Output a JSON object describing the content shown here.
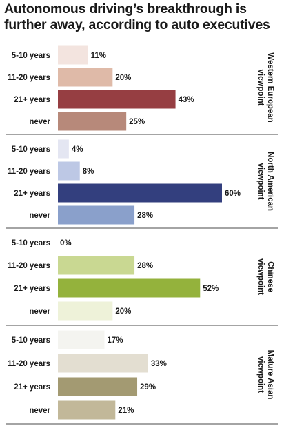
{
  "chart_data": {
    "type": "bar",
    "orientation": "horizontal",
    "title_lines": [
      "Autonomous driving’s breakthrough is",
      "further away, according to auto executives"
    ],
    "categories": [
      "5-10 years",
      "11-20 years",
      "21+ years",
      "never"
    ],
    "panels": [
      {
        "label_lines": [
          "Western European",
          "viewpoint"
        ],
        "values": [
          11,
          20,
          43,
          25
        ],
        "value_labels": [
          "11%",
          "20%",
          "43%",
          "25%"
        ],
        "colors": [
          "#f3e4df",
          "#dfbaa8",
          "#963e42",
          "#b7897a"
        ]
      },
      {
        "label_lines": [
          "North American",
          "viewpoint"
        ],
        "values": [
          4,
          8,
          60,
          28
        ],
        "value_labels": [
          "4%",
          "8%",
          "60%",
          "28%"
        ],
        "colors": [
          "#e4e6f2",
          "#bdc8e5",
          "#333f7e",
          "#8aa0cb"
        ]
      },
      {
        "label_lines": [
          "Chinese",
          "viewpoint"
        ],
        "values": [
          0,
          28,
          52,
          20
        ],
        "value_labels": [
          "0%",
          "28%",
          "52%",
          "20%"
        ],
        "colors": [
          "#f4f6e4",
          "#c9d892",
          "#94b23c",
          "#eef2d9"
        ]
      },
      {
        "label_lines": [
          "Mature Asian",
          "viewpoint"
        ],
        "values": [
          17,
          33,
          29,
          21
        ],
        "value_labels": [
          "17%",
          "33%",
          "29%",
          "21%"
        ],
        "colors": [
          "#f4f4f0",
          "#e3ded1",
          "#a39a72",
          "#c2b899"
        ]
      }
    ],
    "xlim": [
      0,
      60
    ],
    "grid": false,
    "legend": "none"
  }
}
